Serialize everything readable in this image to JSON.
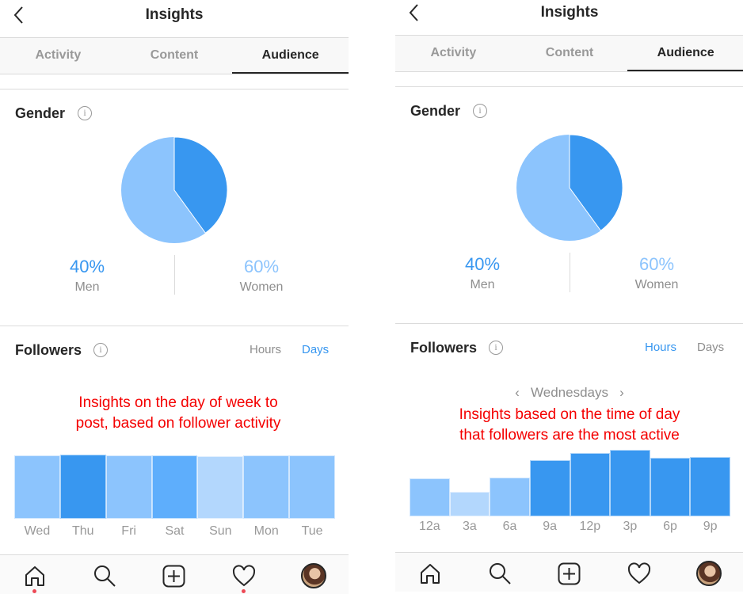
{
  "colors": {
    "accent": "#3897f0",
    "light": "#8cc4fd",
    "medium": "#5eaefc",
    "pale": "#b3d7fd",
    "annotation": "#f40000"
  },
  "panels": [
    {
      "title": "Insights",
      "tabs": [
        "Activity",
        "Content",
        "Audience"
      ],
      "active_tab": "Audience",
      "gender": {
        "heading": "Gender",
        "men_pct": "40%",
        "men_label": "Men",
        "women_pct": "60%",
        "women_label": "Women",
        "men_share": 40,
        "women_share": 60
      },
      "followers": {
        "heading": "Followers",
        "toggle_hours": "Hours",
        "toggle_days": "Days",
        "selected": "Days"
      },
      "annotation": [
        "Insights on the day of week to",
        "post, based on follower activity"
      ],
      "chart_data": {
        "type": "bar",
        "categories": [
          "Wed",
          "Thu",
          "Fri",
          "Sat",
          "Sun",
          "Mon",
          "Tue"
        ],
        "values": [
          99,
          100,
          99,
          99,
          98,
          99,
          99
        ],
        "colors": [
          "#8cc4fd",
          "#3897f0",
          "#8cc4fd",
          "#5eaefc",
          "#b3d7fd",
          "#8cc4fd",
          "#8cc4fd"
        ]
      },
      "nav": [
        "home-icon",
        "search-icon",
        "add-icon",
        "heart-icon",
        "profile-avatar"
      ]
    },
    {
      "title": "Insights",
      "tabs": [
        "Activity",
        "Content",
        "Audience"
      ],
      "active_tab": "Audience",
      "gender": {
        "heading": "Gender",
        "men_pct": "40%",
        "men_label": "Men",
        "women_pct": "60%",
        "women_label": "Women",
        "men_share": 40,
        "women_share": 60
      },
      "followers": {
        "heading": "Followers",
        "toggle_hours": "Hours",
        "toggle_days": "Days",
        "selected": "Hours",
        "day_selector": "Wednesdays"
      },
      "annotation": [
        "Insights based on the time of day",
        "that followers are the most active"
      ],
      "chart_data": {
        "type": "bar",
        "categories": [
          "12a",
          "3a",
          "6a",
          "9a",
          "12p",
          "3p",
          "6p",
          "9p"
        ],
        "values": [
          57,
          37,
          58,
          85,
          95,
          100,
          88,
          89
        ],
        "colors": [
          "#8cc4fd",
          "#b3d7fd",
          "#8cc4fd",
          "#3897f0",
          "#3897f0",
          "#3897f0",
          "#3897f0",
          "#3897f0"
        ]
      },
      "nav": [
        "home-icon",
        "search-icon",
        "add-icon",
        "heart-icon",
        "profile-avatar"
      ]
    }
  ]
}
